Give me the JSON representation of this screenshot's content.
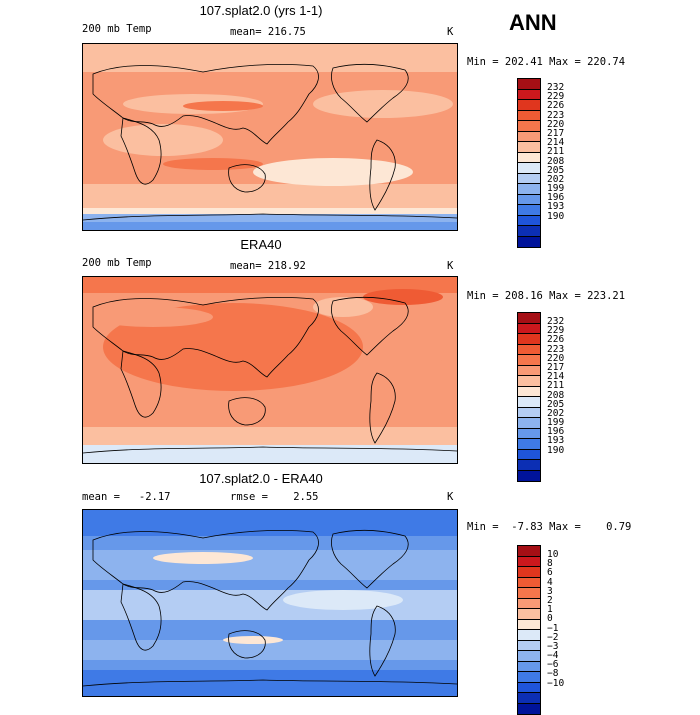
{
  "season": "ANN",
  "panels": [
    {
      "title": "107.splat2.0 (yrs 1-1)",
      "left_label": "200 mb Temp",
      "center_label": "mean= 216.75",
      "units": "K",
      "minmax": "Min = 202.41 Max = 220.74",
      "levels": [
        "232",
        "229",
        "226",
        "223",
        "220",
        "217",
        "214",
        "211",
        "208",
        "205",
        "202",
        "199",
        "196",
        "193",
        "190"
      ],
      "colors": [
        "#a50f15",
        "#cb181d",
        "#e0361e",
        "#ef5b34",
        "#f5764c",
        "#f89a76",
        "#fbbfa0",
        "#fde7d5",
        "#dce9f8",
        "#b4cdf3",
        "#8db3ee",
        "#6698ea",
        "#3f7ae6",
        "#1f55da",
        "#0c2fb4",
        "#00139a"
      ],
      "map_colors": [
        "#f89a76",
        "#fbbfa0",
        "#fde7d5",
        "#8db3ee",
        "#6698ea",
        "#f5764c"
      ]
    },
    {
      "title": "ERA40",
      "left_label": "200 mb Temp",
      "center_label": "mean= 218.92",
      "units": "K",
      "minmax": "Min = 208.16 Max = 223.21",
      "levels": [
        "232",
        "229",
        "226",
        "223",
        "220",
        "217",
        "214",
        "211",
        "208",
        "205",
        "202",
        "199",
        "196",
        "193",
        "190"
      ],
      "colors": [
        "#a50f15",
        "#cb181d",
        "#e0361e",
        "#ef5b34",
        "#f5764c",
        "#f89a76",
        "#fbbfa0",
        "#fde7d5",
        "#dce9f8",
        "#b4cdf3",
        "#8db3ee",
        "#6698ea",
        "#3f7ae6",
        "#1f55da",
        "#0c2fb4",
        "#00139a"
      ],
      "map_colors": [
        "#f89a76",
        "#f5764c",
        "#fbbfa0",
        "#dce9f8",
        "#ef5b34"
      ]
    },
    {
      "title": "107.splat2.0 - ERA40",
      "left_label": "mean =   -2.17",
      "center_label": "rmse =    2.55",
      "units": "K",
      "minmax": "Min =  -7.83 Max =    0.79",
      "levels": [
        "10",
        "8",
        "6",
        "4",
        "3",
        "2",
        "1",
        "0",
        "−1",
        "−2",
        "−3",
        "−4",
        "−6",
        "−8",
        "−10"
      ],
      "colors": [
        "#a50f15",
        "#cb181d",
        "#e0361e",
        "#ef5b34",
        "#f5764c",
        "#f89a76",
        "#fbbfa0",
        "#fde7d5",
        "#dce9f8",
        "#b4cdf3",
        "#8db3ee",
        "#6698ea",
        "#3f7ae6",
        "#1f55da",
        "#0c2fb4",
        "#00139a"
      ],
      "map_colors": [
        "#6698ea",
        "#8db3ee",
        "#b4cdf3",
        "#3f7ae6",
        "#fde7d5",
        "#dce9f8"
      ]
    }
  ]
}
